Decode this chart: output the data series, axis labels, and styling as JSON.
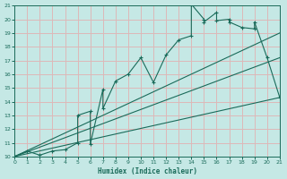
{
  "xlabel": "Humidex (Indice chaleur)",
  "bg_color": "#c5e8e5",
  "grid_color": "#ddb8b8",
  "line_color": "#1a6b5a",
  "xlim": [
    0,
    21
  ],
  "ylim": [
    10,
    21
  ],
  "xticks": [
    0,
    1,
    2,
    3,
    4,
    5,
    6,
    7,
    8,
    9,
    10,
    11,
    12,
    13,
    14,
    15,
    16,
    17,
    18,
    19,
    20,
    21
  ],
  "yticks": [
    10,
    11,
    12,
    13,
    14,
    15,
    16,
    17,
    18,
    19,
    20,
    21
  ],
  "main_x": [
    0,
    1,
    2,
    3,
    4,
    5,
    5,
    6,
    6,
    7,
    7,
    8,
    9,
    10,
    11,
    12,
    13,
    14,
    14,
    15,
    15,
    16,
    16,
    17,
    17,
    18,
    19,
    19,
    20,
    21
  ],
  "main_y": [
    10,
    10.4,
    10.1,
    10.4,
    10.5,
    11.0,
    13.0,
    13.3,
    10.9,
    14.9,
    13.5,
    15.5,
    16.0,
    17.2,
    15.4,
    17.4,
    18.5,
    18.8,
    21.1,
    20.0,
    19.8,
    20.5,
    19.9,
    20.0,
    19.8,
    19.4,
    19.3,
    19.8,
    17.2,
    14.3
  ],
  "line1_x": [
    0,
    21
  ],
  "line1_y": [
    10,
    19.0
  ],
  "line2_x": [
    0,
    21
  ],
  "line2_y": [
    10,
    17.2
  ],
  "line3_x": [
    0,
    21
  ],
  "line3_y": [
    10,
    14.3
  ]
}
